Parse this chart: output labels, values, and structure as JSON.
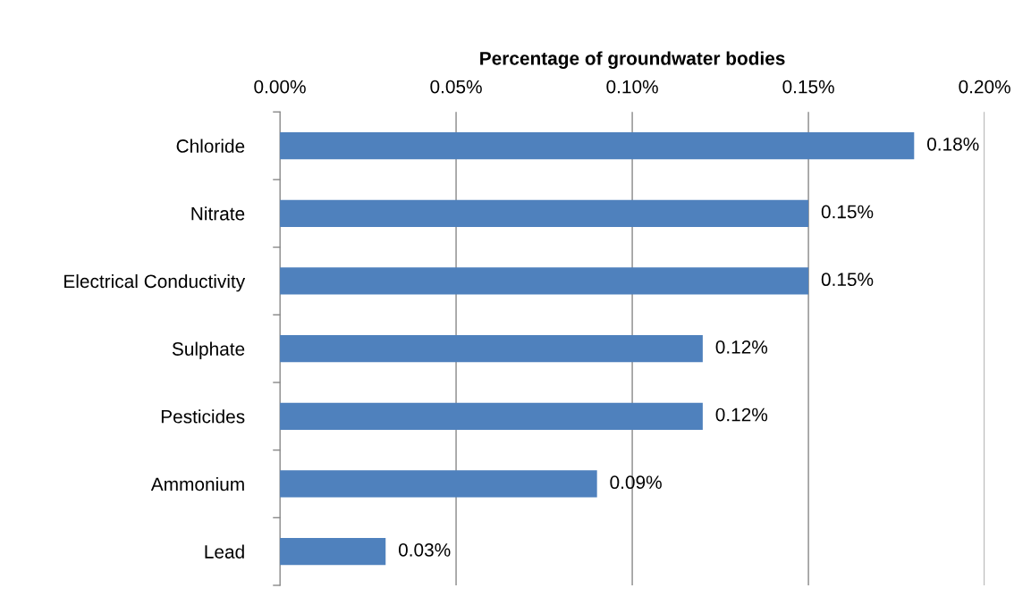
{
  "chart_data": {
    "type": "bar",
    "orientation": "horizontal",
    "xlabel": "Percentage of groundwater bodies",
    "categories": [
      "Chloride",
      "Nitrate",
      "Electrical Conductivity",
      "Sulphate",
      "Pesticides",
      "Ammonium",
      "Lead"
    ],
    "values": [
      0.18,
      0.15,
      0.15,
      0.12,
      0.12,
      0.09,
      0.03
    ],
    "value_labels": [
      "0.18%",
      "0.15%",
      "0.15%",
      "0.12%",
      "0.12%",
      "0.09%",
      "0.03%"
    ],
    "color": "#4f81bd",
    "xlim": [
      0,
      0.2
    ],
    "xticks": [
      {
        "value": 0,
        "label": "0.00%"
      },
      {
        "value": 0.05,
        "label": "0.05%"
      },
      {
        "value": 0.1,
        "label": "0.10%"
      },
      {
        "value": 0.15,
        "label": "0.15%"
      },
      {
        "value": 0.2,
        "label": "0.20%"
      }
    ],
    "grid": "x",
    "legend": false
  }
}
